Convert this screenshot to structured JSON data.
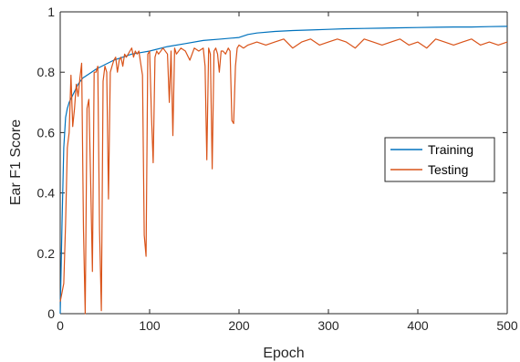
{
  "chart_data": {
    "type": "line",
    "title": "",
    "xlabel": "Epoch",
    "ylabel": "Ear F1 Score",
    "xlim": [
      0,
      500
    ],
    "ylim": [
      0,
      1
    ],
    "xticks": [
      0,
      100,
      200,
      300,
      400,
      500
    ],
    "yticks": [
      0,
      0.2,
      0.4,
      0.6,
      0.8,
      1
    ],
    "xtick_labels": [
      "0",
      "100",
      "200",
      "300",
      "400",
      "500"
    ],
    "ytick_labels": [
      "0",
      "0.2",
      "0.4",
      "0.6",
      "0.8",
      "1"
    ],
    "grid": false,
    "legend": "center-right",
    "series": [
      {
        "name": "Training",
        "color": "#0072BD",
        "x": [
          0,
          2,
          4,
          6,
          8,
          10,
          15,
          20,
          25,
          30,
          35,
          40,
          50,
          60,
          70,
          80,
          90,
          100,
          120,
          140,
          160,
          180,
          200,
          210,
          220,
          240,
          260,
          280,
          300,
          320,
          340,
          360,
          380,
          400,
          420,
          440,
          460,
          480,
          500
        ],
        "y": [
          0.0,
          0.3,
          0.55,
          0.65,
          0.68,
          0.7,
          0.73,
          0.76,
          0.78,
          0.79,
          0.8,
          0.81,
          0.825,
          0.84,
          0.85,
          0.86,
          0.865,
          0.87,
          0.885,
          0.895,
          0.905,
          0.91,
          0.915,
          0.925,
          0.93,
          0.935,
          0.938,
          0.94,
          0.942,
          0.944,
          0.945,
          0.946,
          0.947,
          0.948,
          0.949,
          0.95,
          0.95,
          0.951,
          0.952
        ]
      },
      {
        "name": "Testing",
        "color": "#D95319",
        "x": [
          0,
          2,
          4,
          6,
          8,
          10,
          12,
          14,
          16,
          18,
          20,
          22,
          24,
          26,
          28,
          30,
          32,
          34,
          36,
          38,
          40,
          42,
          44,
          46,
          48,
          50,
          52,
          54,
          56,
          58,
          60,
          62,
          64,
          66,
          68,
          70,
          72,
          74,
          76,
          78,
          80,
          82,
          84,
          86,
          88,
          90,
          92,
          94,
          96,
          98,
          100,
          102,
          104,
          106,
          108,
          110,
          115,
          120,
          122,
          124,
          126,
          128,
          130,
          135,
          140,
          145,
          150,
          155,
          160,
          162,
          164,
          166,
          168,
          170,
          172,
          174,
          176,
          178,
          180,
          182,
          185,
          188,
          190,
          192,
          194,
          196,
          198,
          200,
          205,
          210,
          220,
          230,
          240,
          250,
          260,
          270,
          280,
          290,
          300,
          310,
          320,
          330,
          340,
          350,
          360,
          370,
          380,
          390,
          400,
          410,
          420,
          430,
          440,
          450,
          460,
          470,
          480,
          490,
          500
        ],
        "y": [
          0.04,
          0.07,
          0.1,
          0.3,
          0.55,
          0.6,
          0.79,
          0.62,
          0.68,
          0.76,
          0.72,
          0.78,
          0.83,
          0.28,
          0.0,
          0.68,
          0.71,
          0.45,
          0.14,
          0.8,
          0.8,
          0.82,
          0.28,
          0.01,
          0.77,
          0.82,
          0.8,
          0.38,
          0.8,
          0.82,
          0.84,
          0.85,
          0.8,
          0.84,
          0.85,
          0.82,
          0.86,
          0.85,
          0.86,
          0.87,
          0.88,
          0.85,
          0.87,
          0.86,
          0.87,
          0.83,
          0.79,
          0.26,
          0.19,
          0.86,
          0.87,
          0.66,
          0.5,
          0.85,
          0.87,
          0.86,
          0.88,
          0.86,
          0.7,
          0.87,
          0.59,
          0.88,
          0.86,
          0.88,
          0.87,
          0.84,
          0.88,
          0.87,
          0.88,
          0.82,
          0.51,
          0.88,
          0.86,
          0.48,
          0.87,
          0.88,
          0.86,
          0.8,
          0.87,
          0.87,
          0.86,
          0.88,
          0.87,
          0.64,
          0.63,
          0.82,
          0.88,
          0.89,
          0.88,
          0.89,
          0.9,
          0.89,
          0.9,
          0.91,
          0.88,
          0.9,
          0.91,
          0.89,
          0.9,
          0.91,
          0.9,
          0.88,
          0.91,
          0.9,
          0.89,
          0.9,
          0.91,
          0.89,
          0.9,
          0.88,
          0.91,
          0.9,
          0.89,
          0.9,
          0.91,
          0.89,
          0.9,
          0.89,
          0.9
        ]
      }
    ]
  }
}
